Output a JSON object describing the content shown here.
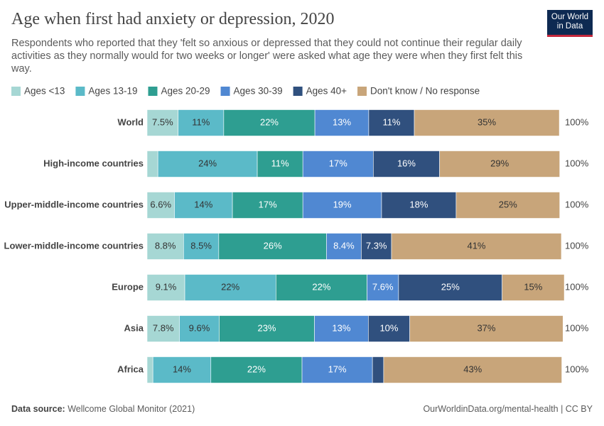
{
  "chart_data": {
    "type": "stacked-bar-horizontal",
    "title": "Age when first had anxiety or depression, 2020",
    "subtitle": "Respondents who reported that they 'felt so anxious or depressed that they could not continue their regular daily activities as they normally would for two weeks or longer' were asked what age they were when they first felt this way.",
    "logo": "Our World in Data",
    "source_label": "Data source:",
    "source": "Wellcome Global Monitor (2021)",
    "credit": "OurWorldinData.org/mental-health | CC BY",
    "categories": [
      "World",
      "High-income countries",
      "Upper-middle-income countries",
      "Lower-middle-income countries",
      "Europe",
      "Asia",
      "Africa"
    ],
    "xlim": [
      0,
      100
    ],
    "totals": [
      100,
      100,
      100,
      100,
      100,
      100,
      100
    ],
    "total_labels": [
      "100%",
      "100%",
      "100%",
      "100%",
      "100%",
      "100%",
      "100%"
    ],
    "series": [
      {
        "name": "Ages <13",
        "color": "#a6d7d4",
        "values": [
          7.5,
          2.6,
          6.6,
          8.8,
          9.1,
          7.8,
          1.4
        ],
        "value_labels": [
          "7.5%",
          null,
          "6.6%",
          "8.8%",
          "9.1%",
          "7.8%",
          null
        ]
      },
      {
        "name": "Ages 13-19",
        "color": "#5bbac8",
        "values": [
          11,
          24,
          14,
          8.5,
          22,
          9.6,
          14
        ],
        "value_labels": [
          "11%",
          "24%",
          "14%",
          "8.5%",
          "22%",
          "9.6%",
          "14%"
        ]
      },
      {
        "name": "Ages 20-29",
        "color": "#2e9e91",
        "values": [
          22,
          11,
          17,
          26,
          22,
          23,
          22
        ],
        "value_labels": [
          "22%",
          "11%",
          "17%",
          "26%",
          "22%",
          "23%",
          "22%"
        ]
      },
      {
        "name": "Ages 30-39",
        "color": "#5088d2",
        "values": [
          13,
          17,
          19,
          8.4,
          7.6,
          13,
          17
        ],
        "value_labels": [
          "13%",
          "17%",
          "19%",
          "8.4%",
          "7.6%",
          "13%",
          "17%"
        ]
      },
      {
        "name": "Ages 40+",
        "color": "#30507e",
        "values": [
          11,
          16,
          18,
          7.3,
          25,
          10,
          2.7
        ],
        "value_labels": [
          "11%",
          "16%",
          "18%",
          "7.3%",
          "25%",
          "10%",
          null
        ]
      },
      {
        "name": "Don't know / No response",
        "color": "#c8a57a",
        "values": [
          35,
          29,
          25,
          41,
          15,
          37,
          43
        ],
        "value_labels": [
          "35%",
          "29%",
          "25%",
          "41%",
          "15%",
          "37%",
          "43%"
        ]
      }
    ]
  }
}
